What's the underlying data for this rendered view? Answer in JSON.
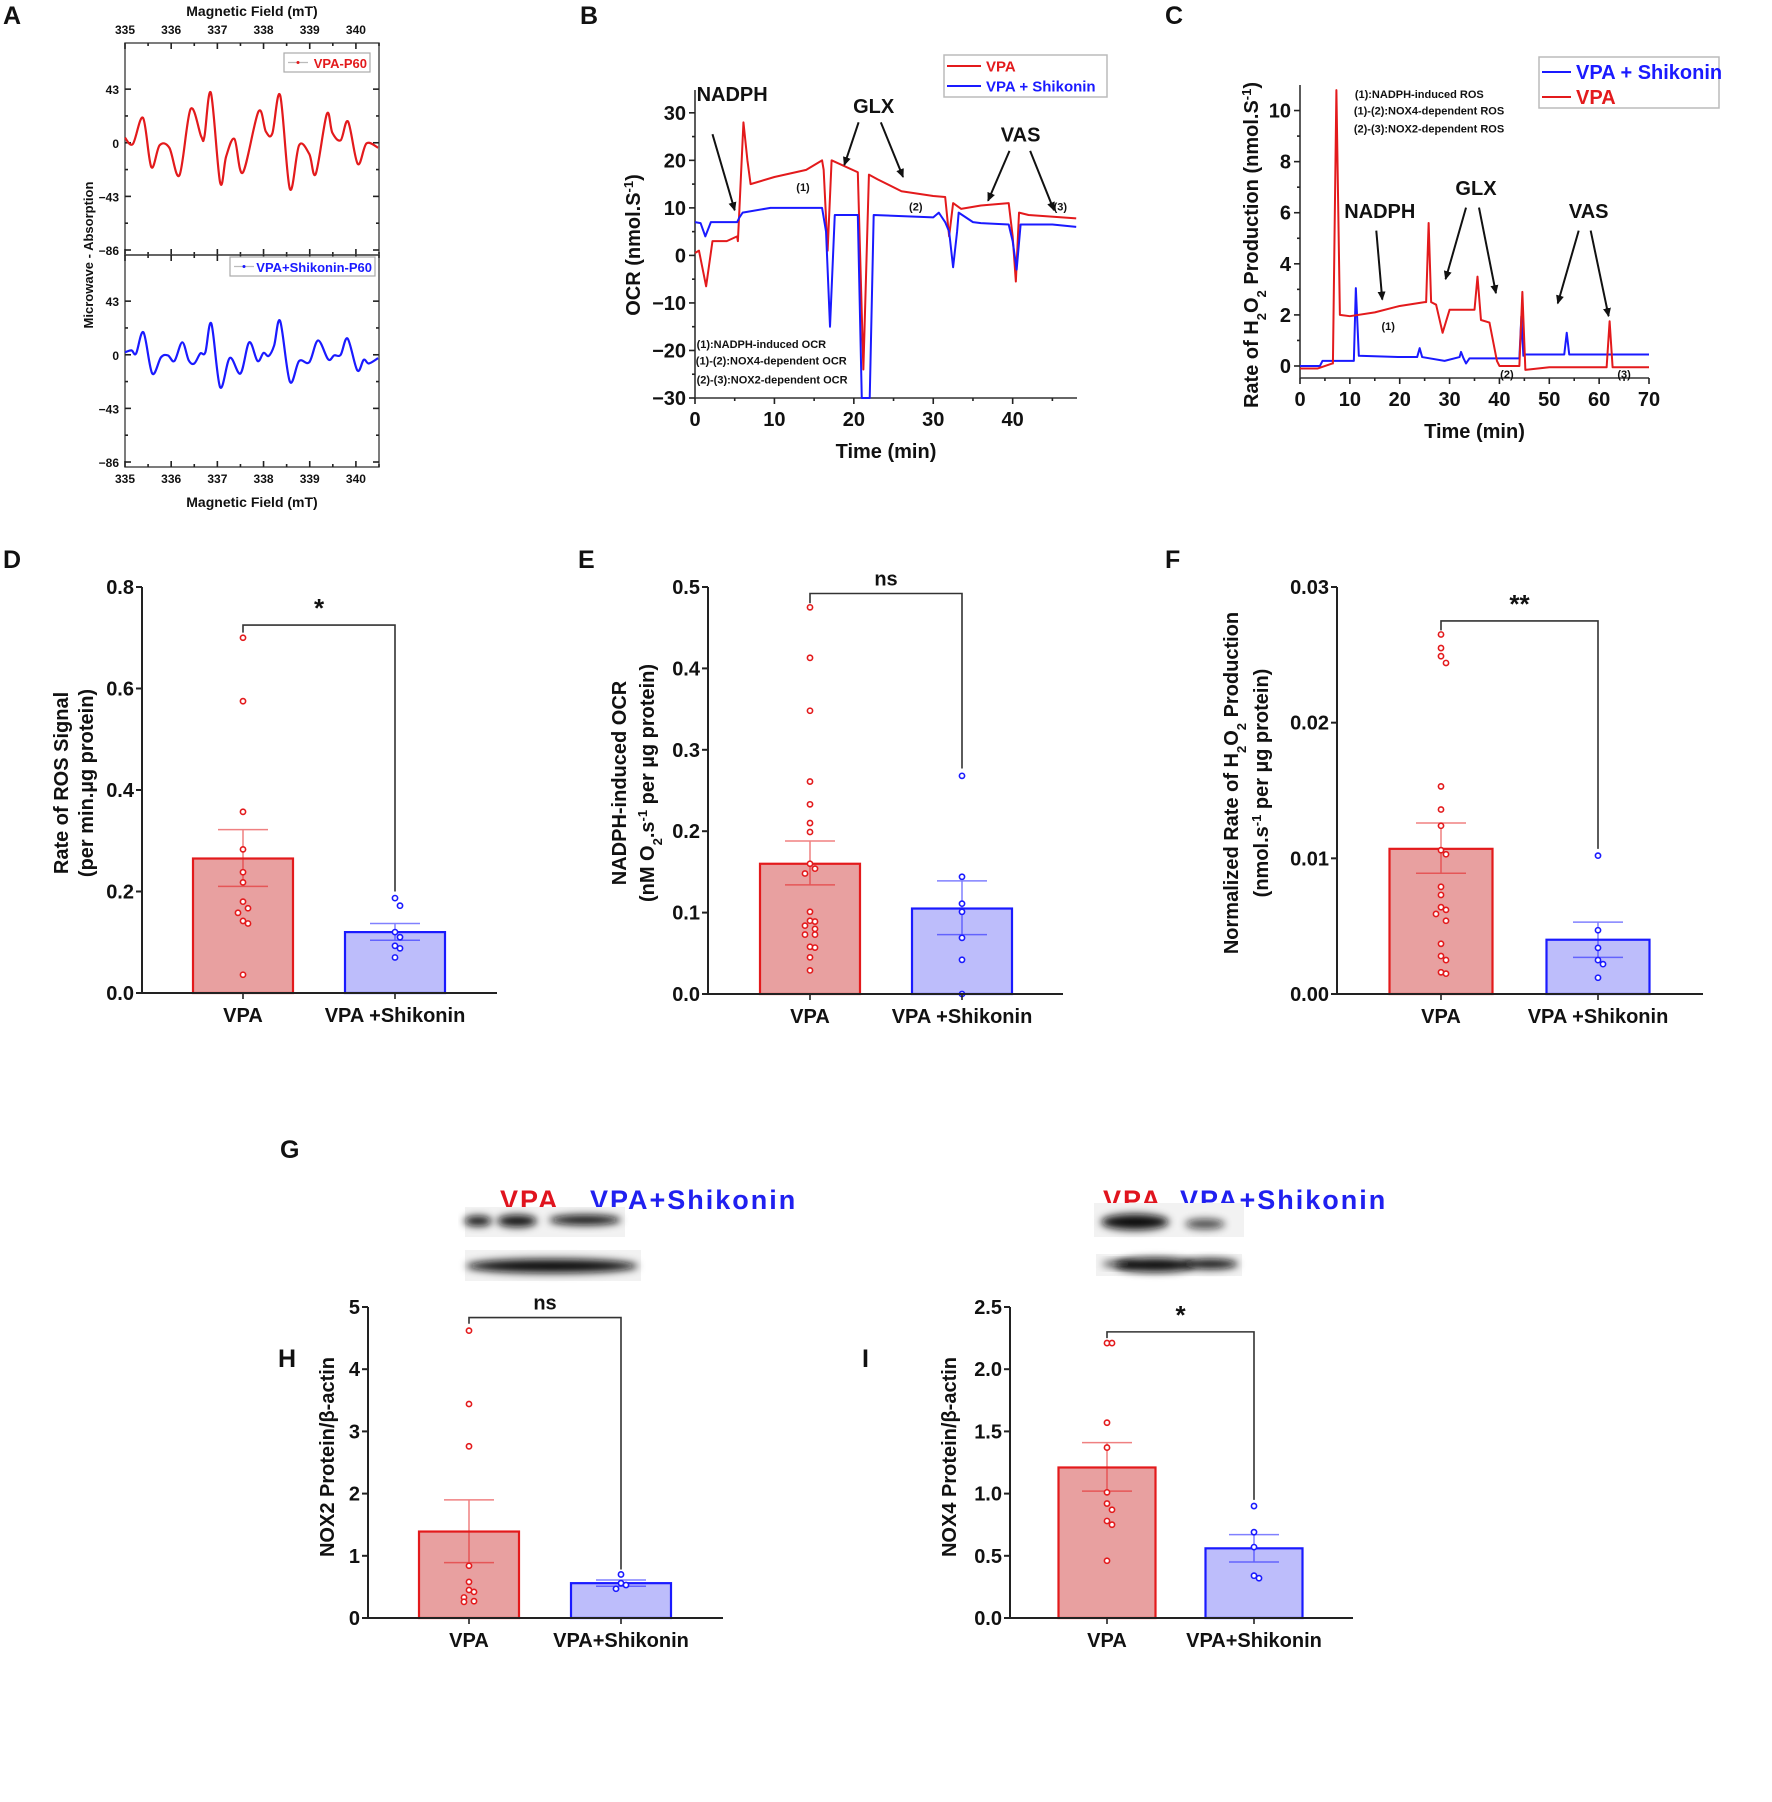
{
  "colors": {
    "red": "#e31a1c",
    "blue": "#1a1aff",
    "red_fill": "#e8a0a0",
    "blue_fill": "#bdbdfb",
    "axis": "#222222"
  },
  "panel_labels": {
    "A": "A",
    "B": "B",
    "C": "C",
    "D": "D",
    "E": "E",
    "F": "F",
    "G": "G",
    "H": "H",
    "I": "I"
  },
  "chart_data": [
    {
      "id": "A",
      "type": "line",
      "xlabel_top": "Magnetic Field (mT)",
      "xlabel_bottom": "Magnetic Field (mT)",
      "ylabel": "Microwave - Absorption",
      "xlim": [
        335,
        340.5
      ],
      "xticks": [
        "335",
        "336",
        "337",
        "338",
        "339",
        "340"
      ],
      "ylim": [
        -90,
        80
      ],
      "yticks": [
        "43",
        "0",
        "-43",
        "-86"
      ],
      "series": [
        {
          "name": "VPA-P60",
          "color": "#e31a1c",
          "x": [
            335.0,
            335.17,
            335.39,
            335.57,
            335.75,
            335.96,
            336.18,
            336.42,
            336.65,
            336.72,
            336.86,
            337.06,
            337.19,
            337.37,
            337.55,
            337.89,
            338.05,
            338.19,
            338.36,
            338.57,
            338.77,
            338.99,
            339.13,
            339.37,
            339.49,
            339.67,
            339.83,
            340.04,
            340.23,
            340.48
          ],
          "y": [
            4,
            -1,
            20,
            -19.5,
            -2,
            -4,
            -26,
            27,
            5,
            5,
            40,
            -32,
            -11,
            3,
            -24,
            25,
            9,
            7.5,
            38,
            -37,
            -2,
            -9,
            -25,
            23,
            8,
            2,
            17,
            -17,
            -0.5,
            -4
          ]
        },
        {
          "name": "VPA+Shikonin-P60",
          "color": "#1a1aff",
          "x": [
            335.0,
            335.14,
            335.24,
            335.4,
            335.59,
            335.78,
            335.93,
            336.07,
            336.24,
            336.38,
            336.5,
            336.63,
            336.74,
            336.87,
            337.06,
            337.27,
            337.5,
            337.69,
            337.87,
            338.0,
            338.11,
            338.23,
            338.36,
            338.57,
            338.77,
            338.99,
            339.18,
            339.4,
            339.53,
            339.67,
            339.82,
            340.03,
            340.17,
            340.28,
            340.48
          ],
          "y": [
            2,
            3.5,
            1,
            18,
            -15,
            -2,
            -0.5,
            -5,
            10,
            -4.5,
            -7,
            1,
            2,
            25,
            -26,
            -2.5,
            -15,
            10,
            -5,
            1.5,
            -1,
            7.5,
            27,
            -21.5,
            -5,
            -6,
            11.5,
            -3.7,
            -0.5,
            0,
            13,
            -12.5,
            -4,
            -7,
            -2.7
          ]
        }
      ]
    },
    {
      "id": "B",
      "type": "line",
      "xlabel": "Time (min)",
      "ylabel": "OCR (nmol.S",
      "ylabel_sup": "-1",
      "ylabel_end": ")",
      "xlim": [
        0,
        48.1
      ],
      "ylim": [
        -30,
        34.8
      ],
      "xticks": [
        0,
        10,
        20,
        30,
        40
      ],
      "yticks": [
        -30,
        -20,
        -10,
        0,
        10,
        20,
        30
      ],
      "legend": "top-right",
      "series": [
        {
          "name": "VPA",
          "color": "#e31a1c",
          "x": [
            0,
            0.5,
            1.4,
            2.2,
            4,
            5.3,
            5.4,
            5.6,
            6.1,
            6.6,
            7,
            10,
            14,
            16,
            16.2,
            16.7,
            17.2,
            20.5,
            21.2,
            21.9,
            23,
            26,
            30,
            31.5,
            32,
            32.5,
            33.5,
            36,
            39.5,
            40,
            40.4,
            40.8,
            42,
            48
          ],
          "y": [
            0.5,
            1,
            -6.5,
            3,
            3,
            4,
            3,
            10,
            28,
            20,
            15,
            16.5,
            18,
            20,
            18,
            1,
            20,
            17.5,
            -24,
            17,
            16,
            13.5,
            12.5,
            12.3,
            4,
            11,
            9.8,
            10.5,
            11,
            4,
            -5.5,
            9,
            8.5,
            7.8
          ]
        },
        {
          "name": "VPA + Shikonin",
          "color": "#1a1aff",
          "x": [
            0,
            0.7,
            1.3,
            2,
            5.3,
            5.6,
            6,
            9.5,
            16,
            16.5,
            17,
            17.6,
            20.5,
            21,
            21.5,
            22,
            22.5,
            30,
            30.7,
            31.5,
            32,
            32.5,
            33,
            33.2,
            35,
            36,
            39.5,
            40,
            40.5,
            41,
            45,
            48
          ],
          "y": [
            7,
            6.8,
            4,
            7,
            7,
            8,
            9,
            10,
            10,
            5,
            -15,
            8.5,
            8.5,
            -30,
            -30,
            -30,
            8.5,
            8,
            9,
            7,
            5,
            -2.5,
            5,
            9,
            7,
            6.8,
            6.5,
            3,
            -3,
            6.5,
            6.5,
            6
          ]
        }
      ],
      "annotations": [
        {
          "text": "NADPH",
          "x": 0.2,
          "y": 32.5,
          "anchor": "start",
          "size": "large",
          "arrows": [
            [
              2.2,
              25.5,
              5,
              9.5
            ]
          ]
        },
        {
          "text": "GLX",
          "x": 22.5,
          "y": 30,
          "anchor": "middle",
          "size": "large",
          "arrows": [
            [
              20.6,
              28,
              18.8,
              19
            ],
            [
              23.4,
              28,
              26.2,
              16.5
            ]
          ]
        },
        {
          "text": "VAS",
          "x": 41,
          "y": 24,
          "anchor": "middle",
          "size": "large",
          "arrows": [
            [
              39.6,
              22,
              36.9,
              11.5
            ],
            [
              42.2,
              22,
              45.2,
              9.5
            ]
          ]
        },
        {
          "text": "(1)",
          "x": 13.6,
          "y": 13.5,
          "anchor": "middle",
          "size": "small"
        },
        {
          "text": "(2)",
          "x": 27.8,
          "y": 9.5,
          "anchor": "middle",
          "size": "small"
        },
        {
          "text": "(3)",
          "x": 46,
          "y": 9.5,
          "anchor": "middle",
          "size": "small"
        },
        {
          "text": "(1):NADPH-induced OCR",
          "x": 0.2,
          "y": -19.5,
          "anchor": "start",
          "size": "small"
        },
        {
          "text": "(1)-(2):NOX4-dependent OCR",
          "x": 0.1,
          "y": -23,
          "anchor": "start",
          "size": "small"
        },
        {
          "text": "(2)-(3):NOX2-dependent OCR",
          "x": 0.2,
          "y": -27,
          "anchor": "start",
          "size": "small"
        }
      ]
    },
    {
      "id": "C",
      "type": "line",
      "xlabel": "Time (min)",
      "ylabel_parts": [
        "Rate of H",
        "2",
        "O",
        "2",
        " Production (nmol.S",
        "-1",
        ")"
      ],
      "xlim": [
        0,
        70
      ],
      "ylim": [
        -0.47,
        11
      ],
      "xticks": [
        0,
        10,
        20,
        30,
        40,
        50,
        60,
        70
      ],
      "yticks": [
        0,
        2,
        4,
        6,
        8,
        10
      ],
      "legend": "top-right",
      "series": [
        {
          "name": "VPA + Shikonin",
          "color": "#1a1aff",
          "x": [
            0,
            4,
            4.5,
            10.8,
            11.2,
            11.8,
            20,
            23.5,
            24,
            24.5,
            29,
            32,
            32.3,
            32.8,
            33.3,
            34,
            40,
            44,
            44.4,
            44.8,
            45,
            53,
            53.5,
            54,
            70
          ],
          "y": [
            0,
            0,
            0.2,
            0.2,
            3.05,
            0.4,
            0.35,
            0.35,
            0.7,
            0.35,
            0.2,
            0.35,
            0.55,
            0.3,
            0.1,
            0.3,
            0.3,
            0.3,
            1.95,
            0.4,
            0.45,
            0.45,
            1.3,
            0.45,
            0.45
          ]
        },
        {
          "name": "VPA",
          "color": "#e31a1c",
          "x": [
            0,
            3.5,
            6.5,
            6.6,
            7.3,
            8,
            10,
            15,
            20,
            25,
            25.3,
            25.8,
            26.3,
            27.3,
            28.6,
            30,
            35,
            35.6,
            36.3,
            38,
            39.5,
            40,
            44,
            44.6,
            45.2,
            50,
            61.5,
            62.1,
            62.7,
            70
          ],
          "y": [
            -0.1,
            -0.1,
            0.1,
            0.1,
            10.8,
            2,
            1.95,
            2.1,
            2.35,
            2.5,
            2.5,
            5.6,
            2.5,
            2.4,
            1.3,
            2.2,
            2.2,
            3.5,
            1.8,
            1.7,
            0.2,
            0,
            0,
            2.9,
            -0.15,
            -0.05,
            -0.05,
            1.75,
            -0.05,
            -0.05
          ]
        }
      ],
      "annotations": [
        {
          "text": "(1):NADPH-induced ROS",
          "x": 11,
          "y": 10.5,
          "anchor": "start",
          "size": "small"
        },
        {
          "text": "(1)-(2):NOX4-dependent ROS",
          "x": 10.8,
          "y": 9.85,
          "anchor": "start",
          "size": "small"
        },
        {
          "text": "(2)-(3):NOX2-dependent ROS",
          "x": 10.8,
          "y": 9.15,
          "anchor": "start",
          "size": "small"
        },
        {
          "text": "NADPH",
          "x": 16,
          "y": 5.8,
          "anchor": "middle",
          "size": "large",
          "arrows": [
            [
              15.3,
              5.3,
              16.5,
              2.6
            ]
          ]
        },
        {
          "text": "GLX",
          "x": 35.3,
          "y": 6.7,
          "anchor": "middle",
          "size": "large",
          "arrows": [
            [
              33.3,
              6.2,
              29.2,
              3.4
            ],
            [
              35.9,
              6.2,
              39.3,
              2.85
            ]
          ]
        },
        {
          "text": "VAS",
          "x": 57.9,
          "y": 5.8,
          "anchor": "middle",
          "size": "large",
          "arrows": [
            [
              55.9,
              5.3,
              51.7,
              2.45
            ],
            [
              58.3,
              5.3,
              61.9,
              1.95
            ]
          ]
        },
        {
          "text": "(1)",
          "x": 17.7,
          "y": 1.4,
          "anchor": "middle",
          "size": "small"
        },
        {
          "text": "(2)",
          "x": 41.5,
          "y": -0.55,
          "anchor": "middle",
          "size": "small"
        },
        {
          "text": "(3)",
          "x": 65,
          "y": -0.55,
          "anchor": "middle",
          "size": "small"
        }
      ]
    },
    {
      "id": "D",
      "type": "bar",
      "ylabel_lines": [
        "Rate of ROS Signal",
        "(per min.µg protein)"
      ],
      "ylim": [
        0,
        0.8
      ],
      "yticks": [
        0,
        0.2,
        0.4,
        0.6,
        0.8
      ],
      "ytick_labels": [
        "0.0",
        "0.2",
        "0.4",
        "0.6",
        "0.8"
      ],
      "categories": [
        "VPA",
        "VPA +Shikonin"
      ],
      "values": [
        0.265,
        0.12
      ],
      "err_low": [
        0.21,
        0.104
      ],
      "err_high": [
        0.322,
        0.137
      ],
      "points": [
        [
          0.7,
          0.575,
          0.357,
          0.283,
          0.238,
          0.218,
          0.18,
          0.167,
          0.158,
          0.142,
          0.137,
          0.036
        ],
        [
          0.187,
          0.172,
          0.12,
          0.11,
          0.093,
          0.088,
          0.07
        ]
      ],
      "significance": {
        "label": "*",
        "bracket_y": 0.725,
        "left_end": 0.71,
        "right_end": 0.2
      }
    },
    {
      "id": "E",
      "type": "bar",
      "ylabel_lines": [
        "NADPH-induced OCR",
        "(nM O",
        "2",
        ".s",
        "-1",
        " per µg protein)"
      ],
      "ylim": [
        0,
        0.5
      ],
      "yticks": [
        0,
        0.1,
        0.2,
        0.3,
        0.4,
        0.5
      ],
      "ytick_labels": [
        "0.0",
        "0.1",
        "0.2",
        "0.3",
        "0.4",
        "0.5"
      ],
      "categories": [
        "VPA",
        "VPA +Shikonin"
      ],
      "values": [
        0.16,
        0.105
      ],
      "err_low": [
        0.134,
        0.073
      ],
      "err_high": [
        0.188,
        0.139
      ],
      "points": [
        [
          0.475,
          0.413,
          0.348,
          0.261,
          0.233,
          0.21,
          0.199,
          0.16,
          0.154,
          0.148,
          0.101,
          0.09,
          0.089,
          0.084,
          0.08,
          0.073,
          0.073,
          0.058,
          0.057,
          0.045,
          0.029
        ],
        [
          0.268,
          0.144,
          0.111,
          0.101,
          0.069,
          0.042,
          0.0
        ]
      ],
      "significance": {
        "label": "ns",
        "bracket_y": 0.492,
        "left_end": 0.48,
        "right_end": 0.277
      }
    },
    {
      "id": "F",
      "type": "bar",
      "ylabel_lines": [
        "Normalized Rate of H",
        "2",
        "O",
        "2",
        " Production",
        "(nmol.s",
        "-1",
        " per µg protein)"
      ],
      "ylim": [
        0,
        0.03
      ],
      "yticks": [
        0,
        0.01,
        0.02,
        0.03
      ],
      "ytick_labels": [
        "0.00",
        "0.01",
        "0.02",
        "0.03"
      ],
      "categories": [
        "VPA",
        "VPA +Shikonin"
      ],
      "values": [
        0.0107,
        0.004
      ],
      "err_low": [
        0.0089,
        0.0027
      ],
      "err_high": [
        0.0126,
        0.0053
      ],
      "points": [
        [
          0.0265,
          0.0255,
          0.0249,
          0.0244,
          0.0153,
          0.0136,
          0.0124,
          0.0106,
          0.0103,
          0.0079,
          0.0073,
          0.0064,
          0.0062,
          0.0059,
          0.0054,
          0.0037,
          0.0028,
          0.0025,
          0.0016,
          0.0015
        ],
        [
          0.0102,
          0.0047,
          0.0034,
          0.0025,
          0.0022,
          0.0012
        ]
      ],
      "significance": {
        "label": "**",
        "bracket_y": 0.0275,
        "left_end": 0.0268,
        "right_end": 0.0107
      }
    },
    {
      "id": "H",
      "type": "bar",
      "ylabel_lines": [
        "NOX2 Protein/β-actin"
      ],
      "ylim": [
        0,
        5
      ],
      "yticks": [
        0,
        1,
        2,
        3,
        4,
        5
      ],
      "ytick_labels": [
        "0",
        "1",
        "2",
        "3",
        "4",
        "5"
      ],
      "categories": [
        "VPA",
        "VPA+Shikonin"
      ],
      "values": [
        1.39,
        0.56
      ],
      "err_low": [
        0.89,
        0.51
      ],
      "err_high": [
        1.9,
        0.61
      ],
      "points": [
        [
          4.62,
          3.44,
          2.76,
          0.84,
          0.58,
          0.45,
          0.42,
          0.33,
          0.27,
          0.26
        ],
        [
          0.7,
          0.56,
          0.53,
          0.47
        ]
      ],
      "significance": {
        "label": "ns",
        "bracket_y": 4.83,
        "left_end": 4.73,
        "right_end": 0.78
      }
    },
    {
      "id": "I",
      "type": "bar",
      "ylabel_lines": [
        "NOX4 Protein/β-actin"
      ],
      "ylim": [
        0,
        2.5
      ],
      "yticks": [
        0,
        0.5,
        1,
        1.5,
        2,
        2.5
      ],
      "ytick_labels": [
        "0.0",
        "0.5",
        "1.0",
        "1.5",
        "2.0",
        "2.5"
      ],
      "categories": [
        "VPA",
        "VPA+Shikonin"
      ],
      "values": [
        1.21,
        0.56
      ],
      "err_low": [
        1.02,
        0.45
      ],
      "err_high": [
        1.41,
        0.67
      ],
      "points": [
        [
          2.21,
          2.21,
          1.57,
          1.37,
          1.01,
          0.92,
          0.87,
          0.78,
          0.75,
          0.46
        ],
        [
          0.9,
          0.69,
          0.57,
          0.34,
          0.32
        ]
      ],
      "significance": {
        "label": "*",
        "bracket_y": 2.3,
        "left_end": 2.25,
        "right_end": 0.95
      }
    }
  ],
  "western_blots": [
    {
      "id": "NOX2",
      "labels": [
        "VPA",
        "VPA+Shikonin"
      ]
    },
    {
      "id": "NOX4",
      "labels": [
        "VPA",
        "VPA+Shikonin"
      ]
    }
  ]
}
